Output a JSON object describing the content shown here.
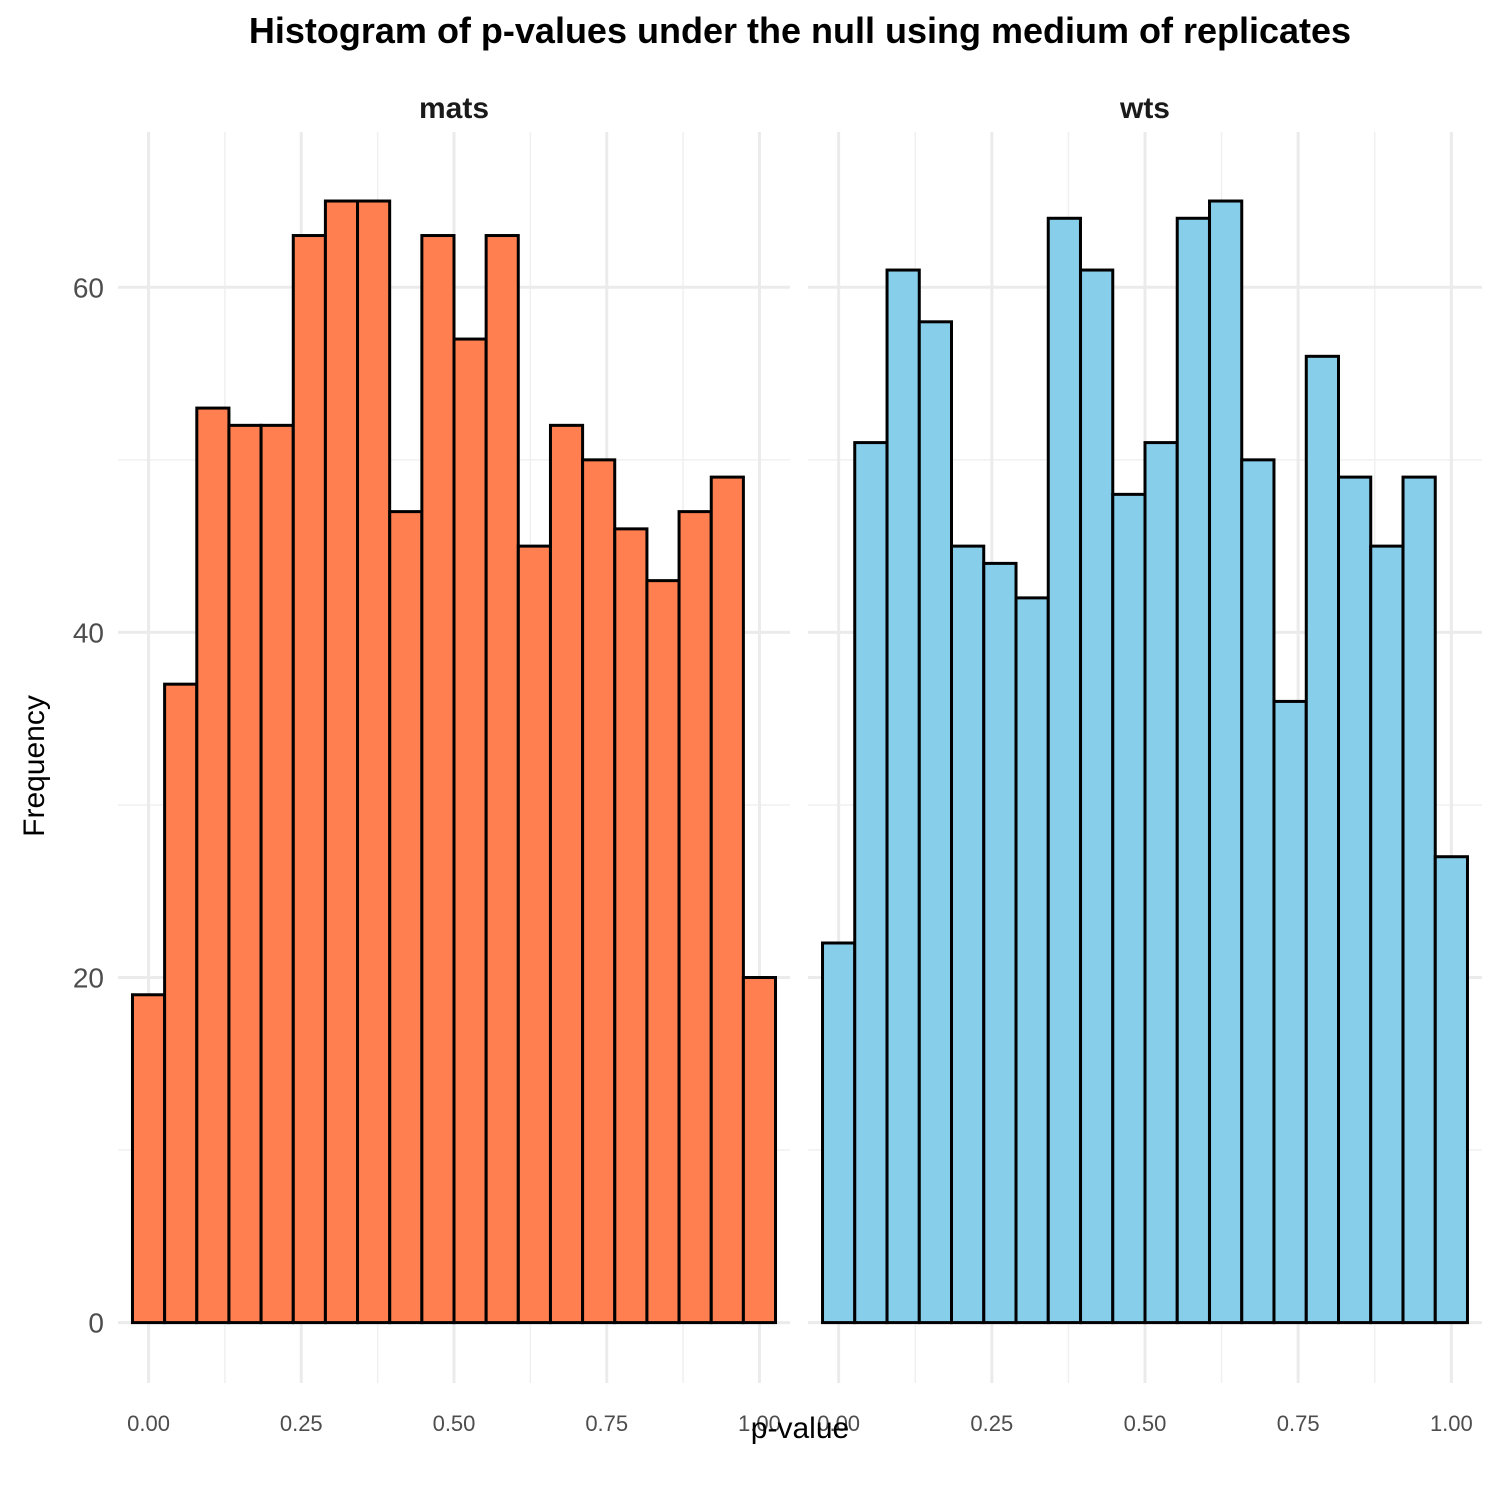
{
  "chart_data": {
    "type": "bar",
    "title": "Histogram of p-values under the null using medium of replicates",
    "xlabel": "p-value",
    "ylabel": "Frequency",
    "xlim": [
      -0.05,
      1.05
    ],
    "ylim": [
      -3.5,
      69
    ],
    "x_ticks": [
      "0.00",
      "0.25",
      "0.50",
      "0.75",
      "1.00"
    ],
    "y_ticks": [
      "0",
      "20",
      "40",
      "60"
    ],
    "bin_width": 0.0526,
    "bin_centers": [
      0.0,
      0.0526,
      0.1053,
      0.1579,
      0.2105,
      0.2632,
      0.3158,
      0.3684,
      0.4211,
      0.4737,
      0.5263,
      0.5789,
      0.6316,
      0.6842,
      0.7368,
      0.7895,
      0.8421,
      0.8947,
      0.9474,
      1.0
    ],
    "grid": true,
    "panels": [
      {
        "name": "mats",
        "fill": "#FF7F50",
        "values": [
          19,
          37,
          53,
          52,
          52,
          63,
          65,
          65,
          47,
          63,
          57,
          63,
          45,
          52,
          50,
          46,
          43,
          47,
          49,
          20
        ]
      },
      {
        "name": "wts",
        "fill": "#87CEEB",
        "values": [
          22,
          51,
          61,
          58,
          45,
          44,
          42,
          64,
          61,
          48,
          51,
          64,
          65,
          50,
          36,
          56,
          49,
          45,
          49,
          27
        ]
      }
    ]
  }
}
